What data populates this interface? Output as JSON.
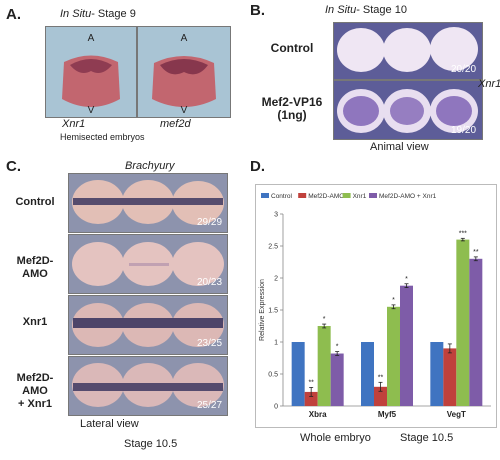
{
  "panelA": {
    "letter": "A.",
    "stage_prefix": "In Situ",
    "stage_suffix": "- Stage 9",
    "markers": {
      "top": "A",
      "bottom": "V"
    },
    "left_gene": "Xnr1",
    "right_gene": "mef2d",
    "caption": "Hemisected embryos",
    "colors": {
      "bg": "#a9c4d4",
      "embryo": "#c2666f",
      "stain": "#7d2f48"
    }
  },
  "panelB": {
    "letter": "B.",
    "stage_prefix": "In Situ",
    "stage_suffix": "- Stage 10",
    "rows": [
      {
        "label_line1": "Control",
        "label_line2": "",
        "count": "20/20"
      },
      {
        "label_line1": "Mef2-VP16",
        "label_line2": "(1ng)",
        "count": "19/20"
      }
    ],
    "side_label": "Xnr1",
    "caption": "Animal view",
    "colors": {
      "bg": "#5d5d98",
      "embryo": "#efe6f3",
      "stain": "#6a4aa8"
    }
  },
  "panelC": {
    "letter": "C.",
    "gene": "Brachyury",
    "rows": [
      {
        "label_line1": "Control",
        "label_line2": "",
        "count": "29/29"
      },
      {
        "label_line1": "Mef2D-AMO",
        "label_line2": "",
        "count": "20/23"
      },
      {
        "label_line1": "Xnr1",
        "label_line2": "",
        "count": "23/25"
      },
      {
        "label_line1": "Mef2D-AMO",
        "label_line2": "+ Xnr1",
        "count": "25/27"
      }
    ],
    "caption_line1": "Lateral view",
    "caption_line2": "Stage 10.5",
    "colors": {
      "bg": "#8d93ad",
      "embryo": "#e2bfb6",
      "band": "#3d3760"
    }
  },
  "panelD": {
    "letter": "D.",
    "caption_left": "Whole embryo",
    "caption_right": "Stage 10.5",
    "chart_data": {
      "type": "bar",
      "categories": [
        "Xbra",
        "Myf5",
        "VegT"
      ],
      "series": [
        {
          "name": "Control",
          "color": "#3f74c1",
          "values": [
            1.0,
            1.0,
            1.0
          ],
          "errors": [
            0,
            0,
            0
          ],
          "sig": [
            "",
            "",
            ""
          ]
        },
        {
          "name": "Mef2D-AMO",
          "color": "#c0413c",
          "values": [
            0.22,
            0.3,
            0.9
          ],
          "errors": [
            0.07,
            0.07,
            0.07
          ],
          "sig": [
            "**",
            "**",
            ""
          ]
        },
        {
          "name": "Xnr1",
          "color": "#8ebd4f",
          "values": [
            1.25,
            1.55,
            2.6
          ],
          "errors": [
            0.03,
            0.03,
            0.02
          ],
          "sig": [
            "*",
            "*",
            "***"
          ]
        },
        {
          "name": "Mef2D-AMO + Xnr1",
          "color": "#7e5ca8",
          "values": [
            0.82,
            1.88,
            2.3
          ],
          "errors": [
            0.03,
            0.03,
            0.03
          ],
          "sig": [
            "*",
            "*",
            "**"
          ]
        }
      ],
      "ylabel": "Relative Expression",
      "ylim": [
        0,
        3
      ],
      "yticks": [
        "0",
        "0.5",
        "1",
        "1.5",
        "2",
        "2.5",
        "3"
      ],
      "legend_position": "top",
      "grid": false
    }
  }
}
